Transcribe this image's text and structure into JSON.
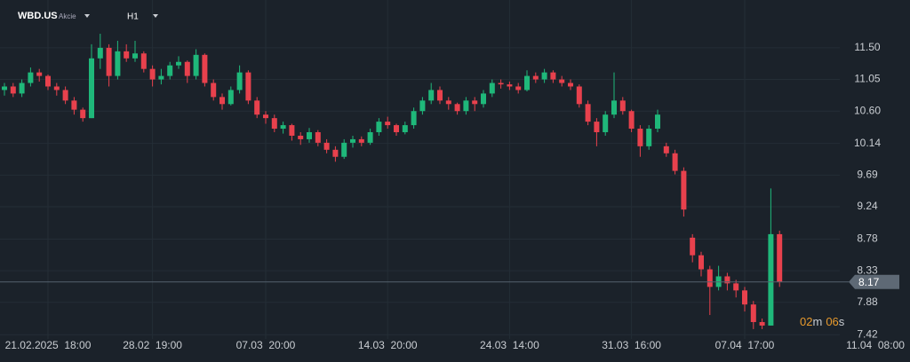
{
  "header": {
    "symbol": "WBD.US",
    "kind": "Akcie",
    "timeframe": "H1"
  },
  "countdown": {
    "minutes": "02",
    "minutes_unit": "m",
    "seconds": "06",
    "seconds_unit": "s"
  },
  "chart_data": {
    "type": "candlestick",
    "up_color": "#1fb87a",
    "down_color": "#e8414d",
    "ylim": [
      7.36,
      12.18
    ],
    "yticks": [
      {
        "value": 11.5,
        "label": "11.50"
      },
      11.05,
      {
        "value": 10.6,
        "label": "10.60"
      },
      10.14,
      9.69,
      9.24,
      8.78,
      8.33,
      7.88,
      7.42
    ],
    "xticks": [
      {
        "value": 5,
        "label": "21.02.2025  18:00"
      },
      {
        "value": 17,
        "label": "28.02  19:00"
      },
      {
        "value": 30,
        "label": "07.03  20:00"
      },
      {
        "value": 44,
        "label": "14.03  20:00"
      },
      {
        "value": 58,
        "label": "24.03  14:00"
      },
      {
        "value": 72,
        "label": "31.03  16:00"
      },
      {
        "value": 85,
        "label": "07.04  17:00"
      },
      {
        "value": 100,
        "label": "11.04  08:00"
      }
    ],
    "grid": true,
    "last_price": 8.17,
    "candles": [
      [
        10.9,
        11.0,
        10.82,
        10.95
      ],
      [
        10.95,
        11.0,
        10.8,
        10.85
      ],
      [
        10.85,
        11.05,
        10.8,
        11.0
      ],
      [
        11.0,
        11.22,
        10.95,
        11.15
      ],
      [
        11.15,
        11.2,
        11.02,
        11.1
      ],
      [
        11.1,
        11.12,
        10.9,
        10.95
      ],
      [
        10.95,
        11.0,
        10.82,
        10.9
      ],
      [
        10.9,
        10.95,
        10.7,
        10.75
      ],
      [
        10.75,
        10.8,
        10.55,
        10.62
      ],
      [
        10.62,
        10.65,
        10.45,
        10.5
      ],
      [
        10.5,
        11.55,
        10.5,
        11.35
      ],
      [
        11.35,
        11.7,
        11.2,
        11.5
      ],
      [
        11.5,
        11.55,
        10.95,
        11.1
      ],
      [
        11.1,
        11.6,
        11.05,
        11.45
      ],
      [
        11.45,
        11.55,
        11.3,
        11.35
      ],
      [
        11.35,
        11.6,
        11.3,
        11.42
      ],
      [
        11.42,
        11.45,
        11.15,
        11.2
      ],
      [
        11.2,
        11.25,
        10.95,
        11.05
      ],
      [
        11.05,
        11.2,
        10.98,
        11.1
      ],
      [
        11.1,
        11.3,
        11.05,
        11.25
      ],
      [
        11.25,
        11.38,
        11.2,
        11.3
      ],
      [
        11.3,
        11.32,
        11.0,
        11.1
      ],
      [
        11.1,
        11.48,
        11.05,
        11.4
      ],
      [
        11.4,
        11.42,
        10.95,
        11.0
      ],
      [
        11.0,
        11.05,
        10.75,
        10.8
      ],
      [
        10.8,
        10.85,
        10.62,
        10.7
      ],
      [
        10.7,
        10.95,
        10.68,
        10.9
      ],
      [
        10.9,
        11.25,
        10.85,
        11.15
      ],
      [
        11.15,
        11.18,
        10.7,
        10.75
      ],
      [
        10.75,
        10.8,
        10.5,
        10.55
      ],
      [
        10.55,
        10.6,
        10.42,
        10.5
      ],
      [
        10.5,
        10.55,
        10.3,
        10.35
      ],
      [
        10.35,
        10.45,
        10.28,
        10.4
      ],
      [
        10.4,
        10.42,
        10.18,
        10.25
      ],
      [
        10.25,
        10.3,
        10.12,
        10.2
      ],
      [
        10.2,
        10.36,
        10.15,
        10.3
      ],
      [
        10.3,
        10.33,
        10.1,
        10.15
      ],
      [
        10.15,
        10.2,
        10.0,
        10.05
      ],
      [
        10.05,
        10.1,
        9.88,
        9.95
      ],
      [
        9.95,
        10.2,
        9.92,
        10.15
      ],
      [
        10.15,
        10.25,
        10.08,
        10.2
      ],
      [
        10.2,
        10.24,
        10.1,
        10.15
      ],
      [
        10.15,
        10.35,
        10.12,
        10.3
      ],
      [
        10.3,
        10.5,
        10.25,
        10.45
      ],
      [
        10.45,
        10.52,
        10.35,
        10.4
      ],
      [
        10.4,
        10.42,
        10.25,
        10.3
      ],
      [
        10.3,
        10.45,
        10.27,
        10.4
      ],
      [
        10.4,
        10.65,
        10.35,
        10.6
      ],
      [
        10.6,
        10.8,
        10.55,
        10.75
      ],
      [
        10.75,
        11.0,
        10.7,
        10.9
      ],
      [
        10.9,
        10.95,
        10.7,
        10.75
      ],
      [
        10.75,
        10.8,
        10.62,
        10.7
      ],
      [
        10.7,
        10.72,
        10.55,
        10.6
      ],
      [
        10.6,
        10.8,
        10.55,
        10.75
      ],
      [
        10.75,
        10.8,
        10.6,
        10.7
      ],
      [
        10.7,
        10.9,
        10.65,
        10.85
      ],
      [
        10.85,
        11.05,
        10.8,
        11.0
      ],
      [
        11.0,
        11.05,
        10.92,
        10.98
      ],
      [
        10.98,
        11.02,
        10.9,
        10.95
      ],
      [
        10.95,
        11.0,
        10.85,
        10.9
      ],
      [
        10.9,
        11.18,
        10.88,
        11.1
      ],
      [
        11.1,
        11.15,
        11.0,
        11.05
      ],
      [
        11.05,
        11.2,
        11.0,
        11.15
      ],
      [
        11.15,
        11.18,
        11.0,
        11.05
      ],
      [
        11.05,
        11.1,
        10.95,
        11.0
      ],
      [
        11.0,
        11.05,
        10.9,
        10.95
      ],
      [
        10.95,
        10.98,
        10.65,
        10.7
      ],
      [
        10.7,
        10.75,
        10.4,
        10.45
      ],
      [
        10.45,
        10.5,
        10.1,
        10.3
      ],
      [
        10.3,
        10.6,
        10.25,
        10.55
      ],
      [
        10.55,
        11.15,
        10.5,
        10.75
      ],
      [
        10.75,
        10.8,
        10.55,
        10.6
      ],
      [
        10.6,
        10.62,
        10.3,
        10.35
      ],
      [
        10.35,
        10.4,
        9.95,
        10.1
      ],
      [
        10.1,
        10.4,
        10.05,
        10.35
      ],
      [
        10.35,
        10.62,
        10.3,
        10.55
      ],
      [
        10.1,
        10.15,
        9.95,
        10.0
      ],
      [
        10.0,
        10.05,
        9.7,
        9.75
      ],
      [
        9.75,
        9.8,
        9.1,
        9.2
      ],
      [
        8.8,
        8.85,
        8.45,
        8.55
      ],
      [
        8.55,
        8.6,
        8.25,
        8.35
      ],
      [
        8.35,
        8.4,
        7.7,
        8.1
      ],
      [
        8.1,
        8.4,
        8.05,
        8.25
      ],
      [
        8.25,
        8.3,
        8.05,
        8.15
      ],
      [
        8.15,
        8.2,
        7.95,
        8.05
      ],
      [
        8.05,
        8.1,
        7.75,
        7.85
      ],
      [
        7.85,
        7.9,
        7.5,
        7.6
      ],
      [
        7.6,
        7.65,
        7.5,
        7.55
      ],
      [
        7.55,
        9.5,
        7.55,
        8.85
      ],
      [
        8.85,
        8.9,
        8.1,
        8.17
      ]
    ]
  }
}
